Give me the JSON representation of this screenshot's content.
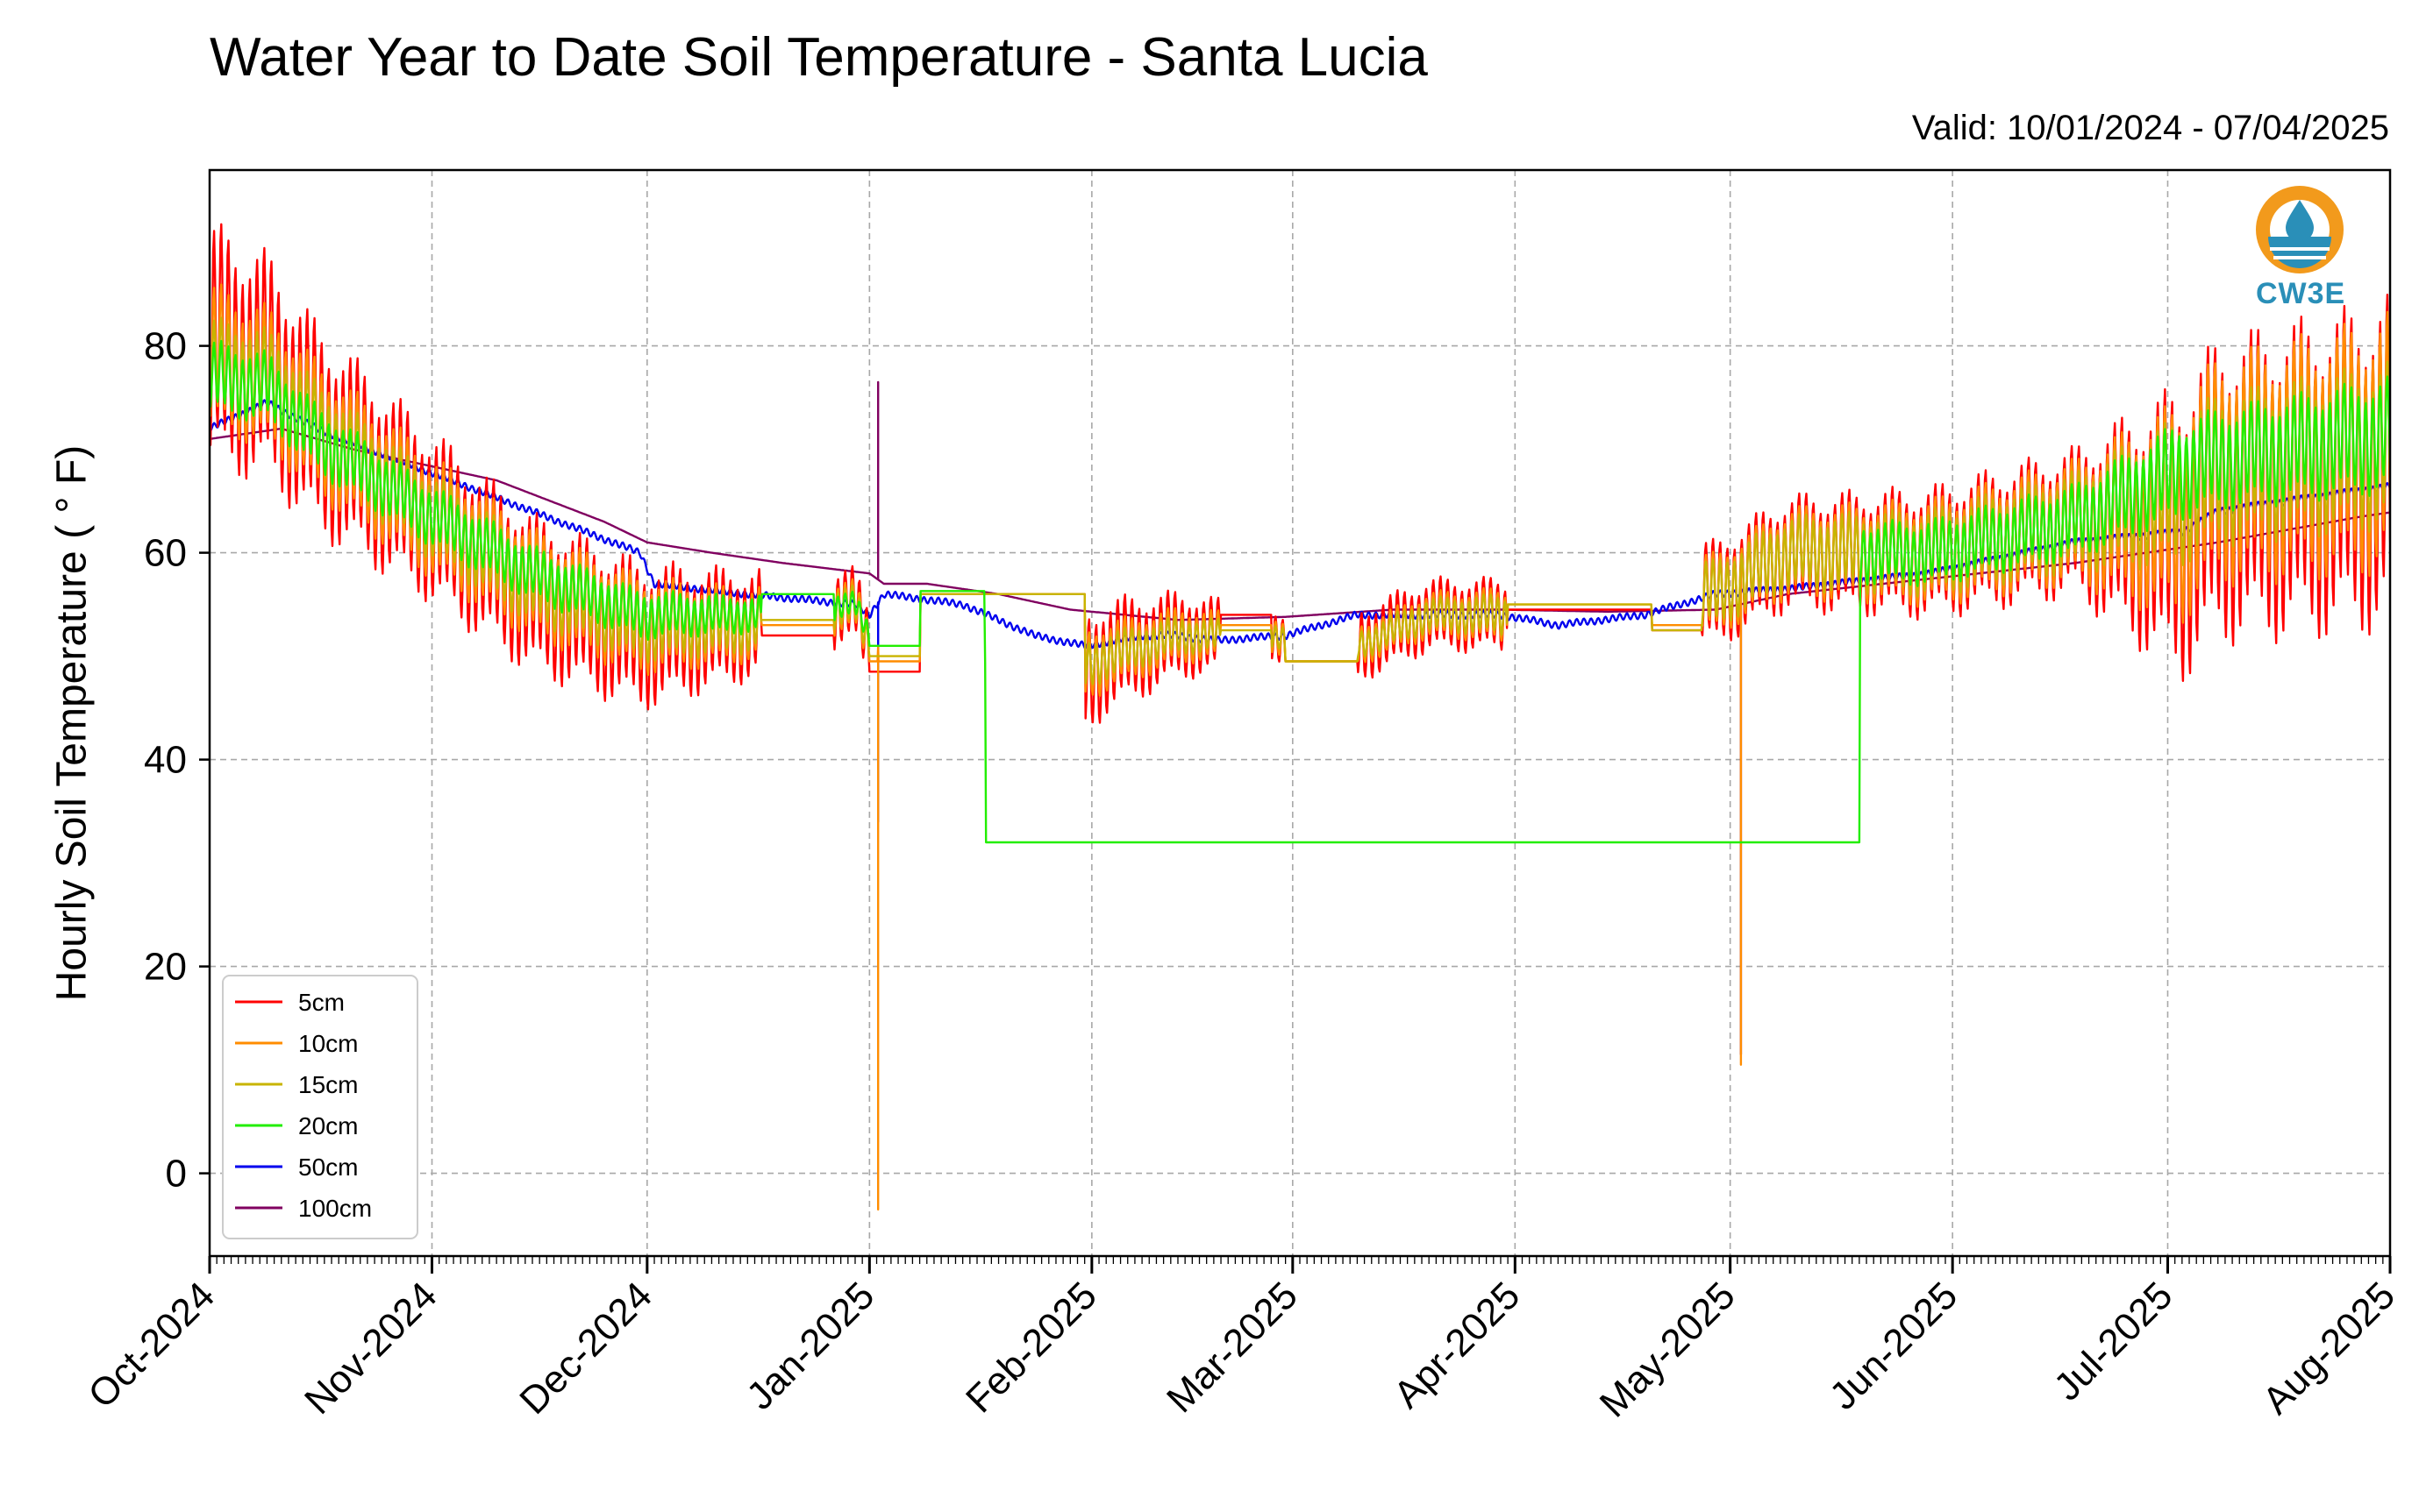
{
  "chart_data": {
    "type": "line",
    "title": "Water Year to Date Soil Temperature - Santa Lucia",
    "subtitle": "Valid: 10/01/2024 - 07/04/2025",
    "ylabel": "Hourly Soil Temperature ( ° F)",
    "xlabel": "",
    "ylim": [
      -8,
      97
    ],
    "y_ticks": [
      0,
      20,
      40,
      60,
      80
    ],
    "x_range": [
      "2024-10-01",
      "2025-08-01"
    ],
    "x_tick_labels": [
      "Oct-2024",
      "Nov-2024",
      "Dec-2024",
      "Jan-2025",
      "Feb-2025",
      "Mar-2025",
      "Apr-2025",
      "May-2025",
      "Jun-2025",
      "Jul-2025",
      "Aug-2025"
    ],
    "grid": true,
    "legend_position": "lower-left",
    "logo_text": "CW3E",
    "series": [
      {
        "name": "5cm",
        "color": "#ff0000",
        "mean": [
          [
            0,
            80
          ],
          [
            8,
            78
          ],
          [
            15,
            72
          ],
          [
            30,
            64
          ],
          [
            45,
            56
          ],
          [
            60,
            52
          ],
          [
            75,
            53
          ],
          [
            90,
            55
          ],
          [
            92,
            51
          ],
          [
            110,
            50
          ],
          [
            122,
            48
          ],
          [
            125,
            50
          ],
          [
            135,
            52
          ],
          [
            150,
            52
          ],
          [
            160,
            51
          ],
          [
            170,
            54
          ],
          [
            180,
            54
          ],
          [
            190,
            53
          ],
          [
            200,
            56
          ],
          [
            210,
            56
          ],
          [
            220,
            60
          ],
          [
            240,
            60
          ],
          [
            260,
            63
          ],
          [
            275,
            62
          ],
          [
            280,
            66
          ],
          [
            300,
            68
          ],
          [
            310,
            70
          ],
          [
            320,
            72
          ]
        ],
        "amplitude": [
          [
            0,
            10
          ],
          [
            30,
            7
          ],
          [
            60,
            6
          ],
          [
            90,
            3
          ],
          [
            100,
            4
          ],
          [
            122,
            5
          ],
          [
            150,
            2
          ],
          [
            160,
            3
          ],
          [
            175,
            3
          ],
          [
            190,
            3
          ],
          [
            200,
            4
          ],
          [
            260,
            6
          ],
          [
            275,
            12
          ],
          [
            320,
            14
          ]
        ],
        "flats": [
          [
            77,
            87,
            52
          ],
          [
            92,
            99,
            48.5
          ],
          [
            94,
            122,
            56
          ],
          [
            141,
            148,
            54
          ],
          [
            150,
            160,
            49.5
          ],
          [
            181,
            201,
            54.5
          ],
          [
            201,
            208,
            52.5
          ]
        ]
      },
      {
        "name": "10cm",
        "color": "#ff8c00",
        "mean": [
          [
            0,
            79
          ],
          [
            8,
            77
          ],
          [
            15,
            72
          ],
          [
            30,
            64
          ],
          [
            45,
            57
          ],
          [
            60,
            53
          ],
          [
            75,
            53
          ],
          [
            90,
            55
          ],
          [
            92,
            51
          ],
          [
            110,
            50
          ],
          [
            122,
            49
          ],
          [
            125,
            50
          ],
          [
            135,
            52
          ],
          [
            150,
            52
          ],
          [
            160,
            51
          ],
          [
            170,
            54
          ],
          [
            180,
            54
          ],
          [
            190,
            53
          ],
          [
            200,
            56
          ],
          [
            210,
            56
          ],
          [
            220,
            60
          ],
          [
            240,
            60
          ],
          [
            260,
            63
          ],
          [
            275,
            64
          ],
          [
            280,
            68
          ],
          [
            300,
            70
          ],
          [
            310,
            72
          ],
          [
            320,
            74
          ]
        ],
        "amplitude": [
          [
            0,
            6
          ],
          [
            30,
            5
          ],
          [
            60,
            4
          ],
          [
            90,
            2
          ],
          [
            100,
            3
          ],
          [
            122,
            3
          ],
          [
            150,
            1.5
          ],
          [
            175,
            2
          ],
          [
            200,
            3
          ],
          [
            260,
            5
          ],
          [
            275,
            9
          ],
          [
            320,
            11
          ]
        ],
        "flats": [
          [
            77,
            87,
            53
          ],
          [
            92,
            99,
            49.5
          ],
          [
            94,
            122,
            56
          ],
          [
            141,
            148,
            53
          ],
          [
            150,
            160,
            49.5
          ],
          [
            181,
            201,
            55
          ],
          [
            201,
            208,
            53
          ]
        ],
        "spikes": [
          [
            93.2,
            -3.5
          ],
          [
            213.5,
            10.5
          ]
        ]
      },
      {
        "name": "15cm",
        "color": "#c8b400",
        "mean": [
          [
            0,
            78
          ],
          [
            8,
            77
          ],
          [
            15,
            72
          ],
          [
            30,
            64
          ],
          [
            45,
            57
          ],
          [
            60,
            53
          ],
          [
            75,
            53
          ],
          [
            90,
            55
          ],
          [
            92,
            51
          ],
          [
            110,
            50
          ],
          [
            122,
            49
          ],
          [
            125,
            50
          ],
          [
            135,
            52
          ],
          [
            150,
            52
          ],
          [
            160,
            51
          ],
          [
            170,
            54
          ],
          [
            180,
            54
          ],
          [
            190,
            53
          ],
          [
            200,
            56
          ],
          [
            210,
            56
          ],
          [
            220,
            60
          ],
          [
            240,
            60
          ],
          [
            260,
            63
          ],
          [
            275,
            66
          ],
          [
            280,
            68
          ],
          [
            300,
            70
          ],
          [
            310,
            71
          ],
          [
            320,
            73
          ]
        ],
        "amplitude": [
          [
            0,
            4
          ],
          [
            30,
            3.5
          ],
          [
            60,
            3
          ],
          [
            90,
            1.5
          ],
          [
            100,
            2
          ],
          [
            122,
            2
          ],
          [
            150,
            1
          ],
          [
            175,
            1.5
          ],
          [
            200,
            2.5
          ],
          [
            260,
            4
          ],
          [
            275,
            6
          ],
          [
            320,
            7
          ]
        ],
        "flats": [
          [
            77,
            87,
            53.5
          ],
          [
            92,
            99,
            50
          ],
          [
            94,
            122,
            56
          ],
          [
            141,
            148,
            52.5
          ],
          [
            150,
            160,
            49.5
          ],
          [
            181,
            201,
            55
          ],
          [
            201,
            208,
            52.5
          ]
        ]
      },
      {
        "name": "20cm",
        "color": "#22ee00",
        "mean": [
          [
            0,
            77
          ],
          [
            8,
            76
          ],
          [
            15,
            71
          ],
          [
            30,
            64
          ],
          [
            45,
            58
          ],
          [
            60,
            54
          ],
          [
            75,
            54
          ],
          [
            90,
            55
          ],
          [
            92,
            52
          ],
          [
            110,
            50
          ],
          [
            122,
            49
          ],
          [
            125,
            50
          ],
          [
            135,
            52
          ],
          [
            150,
            52
          ],
          [
            160,
            51
          ],
          [
            170,
            54
          ],
          [
            180,
            54
          ],
          [
            190,
            53
          ],
          [
            200,
            56
          ],
          [
            210,
            57
          ],
          [
            220,
            60
          ],
          [
            240,
            60
          ],
          [
            260,
            63
          ],
          [
            275,
            68
          ],
          [
            280,
            69
          ],
          [
            300,
            71
          ],
          [
            310,
            72
          ],
          [
            320,
            74
          ]
        ],
        "amplitude": [
          [
            0,
            3
          ],
          [
            30,
            2.5
          ],
          [
            60,
            2
          ],
          [
            90,
            1
          ],
          [
            122,
            1.2
          ],
          [
            150,
            0.8
          ],
          [
            200,
            2
          ],
          [
            260,
            3
          ],
          [
            275,
            4
          ],
          [
            320,
            5
          ]
        ],
        "flats": [
          [
            77,
            87,
            56
          ],
          [
            92,
            99,
            51
          ],
          [
            94,
            108,
            56.3
          ],
          [
            108.2,
            230,
            32
          ]
        ]
      },
      {
        "name": "50cm",
        "color": "#0000ee",
        "mean": [
          [
            0,
            72
          ],
          [
            8,
            74.5
          ],
          [
            15,
            72
          ],
          [
            30,
            68
          ],
          [
            45,
            64
          ],
          [
            60,
            60
          ],
          [
            62,
            57
          ],
          [
            75,
            56
          ],
          [
            90,
            55
          ],
          [
            92,
            54
          ],
          [
            94,
            56
          ],
          [
            105,
            55
          ],
          [
            115,
            52
          ],
          [
            122,
            51
          ],
          [
            130,
            52
          ],
          [
            135,
            52
          ],
          [
            140,
            51.5
          ],
          [
            150,
            52
          ],
          [
            160,
            54
          ],
          [
            170,
            54
          ],
          [
            180,
            54
          ],
          [
            188,
            53
          ],
          [
            200,
            54
          ],
          [
            210,
            56
          ],
          [
            220,
            56.5
          ],
          [
            240,
            58
          ],
          [
            260,
            61
          ],
          [
            275,
            62
          ],
          [
            280,
            64
          ],
          [
            300,
            66
          ],
          [
            310,
            67
          ],
          [
            320,
            69.5
          ]
        ],
        "amplitude": [
          [
            0,
            0.3
          ],
          [
            320,
            0.3
          ]
        ],
        "spikes": [
          [
            93.2,
            34
          ]
        ]
      },
      {
        "name": "100cm",
        "color": "#800060",
        "mean": [
          [
            0,
            71
          ],
          [
            10,
            72
          ],
          [
            20,
            70
          ],
          [
            40,
            67
          ],
          [
            55,
            63
          ],
          [
            61,
            61
          ],
          [
            70,
            60
          ],
          [
            80,
            59
          ],
          [
            92,
            58
          ],
          [
            94,
            57
          ],
          [
            100,
            57
          ],
          [
            110,
            56
          ],
          [
            120,
            54.5
          ],
          [
            135,
            53.5
          ],
          [
            150,
            53.8
          ],
          [
            165,
            54.5
          ],
          [
            180,
            54.5
          ],
          [
            195,
            54.3
          ],
          [
            210,
            54.5
          ],
          [
            220,
            56
          ],
          [
            240,
            57.5
          ],
          [
            260,
            59
          ],
          [
            280,
            61
          ],
          [
            300,
            63.5
          ],
          [
            310,
            64.5
          ],
          [
            320,
            66
          ]
        ],
        "amplitude": [
          [
            0,
            0
          ],
          [
            320,
            0
          ]
        ],
        "spikes": [
          [
            93.2,
            76.5
          ],
          [
            213.5,
            11.5
          ]
        ]
      }
    ]
  }
}
